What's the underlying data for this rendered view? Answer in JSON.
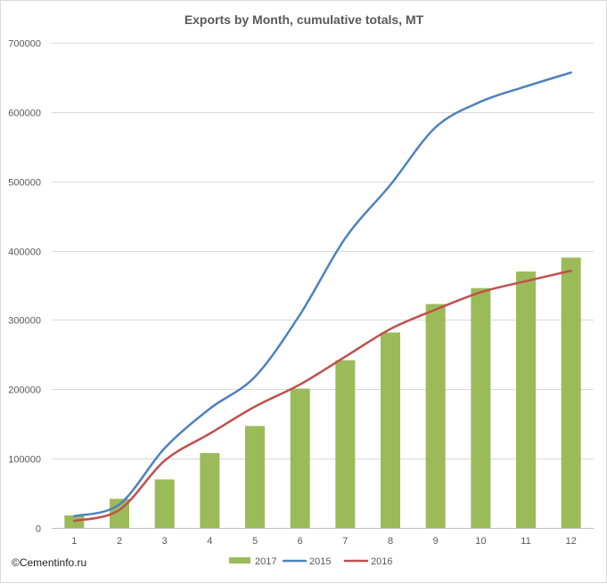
{
  "chart_data": {
    "type": "bar",
    "title": "Exports by Month, cumulative totals, MT",
    "xlabel": "",
    "ylabel": "",
    "categories": [
      "1",
      "2",
      "3",
      "4",
      "5",
      "6",
      "7",
      "8",
      "9",
      "10",
      "11",
      "12"
    ],
    "ylim": [
      0,
      700000
    ],
    "yticks": [
      0,
      100000,
      200000,
      300000,
      400000,
      500000,
      600000,
      700000
    ],
    "ytick_labels": [
      "0",
      "100000",
      "200000",
      "300000",
      "400000",
      "500000",
      "600000",
      "700000"
    ],
    "grid": true,
    "legend_position": "bottom",
    "series": [
      {
        "name": "2017",
        "type": "bar",
        "color": "#9bbb59",
        "values": [
          18000,
          42000,
          70000,
          108000,
          147000,
          201000,
          242000,
          282000,
          323000,
          346000,
          370000,
          390000
        ]
      },
      {
        "name": "2015",
        "type": "line",
        "color": "#4f81bd",
        "values": [
          17000,
          34000,
          115000,
          172000,
          218000,
          308000,
          418000,
          495000,
          578000,
          615000,
          637000,
          657000
        ]
      },
      {
        "name": "2016",
        "type": "line",
        "color": "#c0504d",
        "values": [
          10000,
          26000,
          97000,
          136000,
          175000,
          207000,
          247000,
          287000,
          315000,
          340000,
          356000,
          371000
        ]
      }
    ]
  },
  "watermark": {
    "text": "©Cementinfo.ru"
  }
}
